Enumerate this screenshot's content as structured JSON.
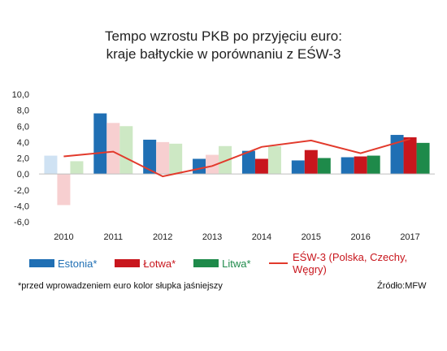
{
  "chart_data": {
    "type": "bar",
    "title": "Tempo wzrostu PKB po przyjęciu euro:",
    "subtitle": "kraje bałtyckie w porównaniu z EŚW-3",
    "categories": [
      "2010",
      "2011",
      "2012",
      "2013",
      "2014",
      "2015",
      "2016",
      "2017"
    ],
    "ylim": [
      -6,
      10
    ],
    "yticks": [
      "10,0",
      "8,0",
      "6,0",
      "4,0",
      "2,0",
      "0,0",
      "-2,0",
      "-4,0",
      "-6,0"
    ],
    "series": [
      {
        "name": "Estonia*",
        "color": "#1f6fb4",
        "light_color": "#cfe2f3",
        "values": [
          2.3,
          7.6,
          4.3,
          1.9,
          2.9,
          1.7,
          2.1,
          4.9
        ],
        "light": [
          true,
          false,
          false,
          false,
          false,
          false,
          false,
          false
        ]
      },
      {
        "name": "Łotwa*",
        "color": "#c8161d",
        "light_color": "#f7cfd0",
        "values": [
          -3.9,
          6.4,
          4.0,
          2.4,
          1.9,
          3.0,
          2.2,
          4.6
        ],
        "light": [
          true,
          true,
          true,
          true,
          false,
          false,
          false,
          false
        ]
      },
      {
        "name": "Litwa*",
        "color": "#1e8a4a",
        "light_color": "#cde8c4",
        "values": [
          1.6,
          6.0,
          3.8,
          3.5,
          3.5,
          2.0,
          2.3,
          3.9
        ],
        "light": [
          true,
          true,
          true,
          true,
          true,
          false,
          false,
          false
        ]
      }
    ],
    "line": {
      "name": "EŚW-3 (Polska, Czechy, Węgry)",
      "color": "#e23a2c",
      "values": [
        2.2,
        2.8,
        -0.3,
        1.0,
        3.4,
        4.2,
        2.6,
        4.4
      ]
    }
  },
  "footnote": "*przed wprowadzeniem euro kolor słupka jaśniejszy",
  "source": "Źródło:MFW"
}
